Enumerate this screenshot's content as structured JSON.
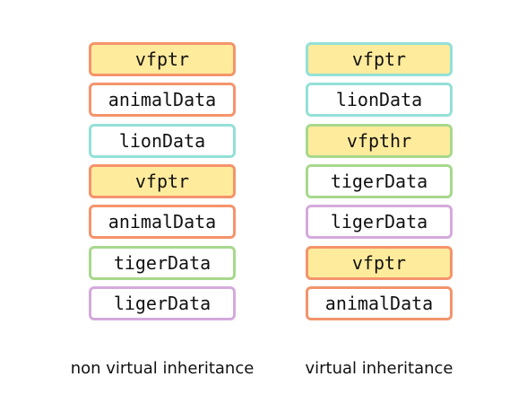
{
  "columns": [
    {
      "caption": "non virtual inheritance",
      "boxes": [
        {
          "label": "vfptr",
          "border": "#f4946c",
          "fill": "#ffeb9c"
        },
        {
          "label": "animalData",
          "border": "#f4946c",
          "fill": "#ffffff"
        },
        {
          "label": "lionData",
          "border": "#94e0d8",
          "fill": "#ffffff"
        },
        {
          "label": "vfptr",
          "border": "#f4946c",
          "fill": "#ffeb9c"
        },
        {
          "label": "animalData",
          "border": "#f4946c",
          "fill": "#ffffff"
        },
        {
          "label": "tigerData",
          "border": "#a8d88c",
          "fill": "#ffffff"
        },
        {
          "label": "ligerData",
          "border": "#d4aadc",
          "fill": "#ffffff"
        }
      ]
    },
    {
      "caption": "virtual inheritance",
      "boxes": [
        {
          "label": "vfptr",
          "border": "#94e0d8",
          "fill": "#ffeb9c"
        },
        {
          "label": "lionData",
          "border": "#94e0d8",
          "fill": "#ffffff"
        },
        {
          "label": "vfpthr",
          "border": "#a8d88c",
          "fill": "#ffeb9c"
        },
        {
          "label": "tigerData",
          "border": "#a8d88c",
          "fill": "#ffffff"
        },
        {
          "label": "ligerData",
          "border": "#d4aadc",
          "fill": "#ffffff"
        },
        {
          "label": "vfptr",
          "border": "#f4946c",
          "fill": "#ffeb9c"
        },
        {
          "label": "animalData",
          "border": "#f4946c",
          "fill": "#ffffff"
        }
      ]
    }
  ]
}
